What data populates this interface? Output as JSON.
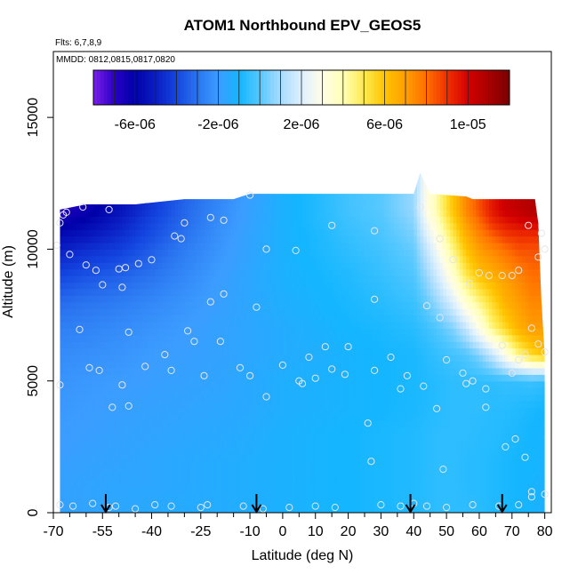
{
  "chart_data": {
    "type": "heatmap",
    "title": "ATOM1 Northbound EPV_GEOS5",
    "notes": {
      "flights": "Flts: 6,7,8,9",
      "dates": "MMDD: 0812,0815,0817,0820"
    },
    "xlabel": "Latitude (deg N)",
    "ylabel": "Altitude (m)",
    "xlim": [
      -70,
      82
    ],
    "ylim": [
      0,
      17500
    ],
    "x_ticks": [
      -70,
      -55,
      -40,
      -25,
      -10,
      0,
      10,
      20,
      30,
      40,
      50,
      60,
      70,
      80
    ],
    "x_minor_ticks": [
      -65,
      -60,
      -50,
      -45,
      -35,
      -30,
      -20,
      -15,
      -5,
      5,
      15,
      25,
      35,
      45,
      55,
      65,
      75
    ],
    "x_tick_labels": [
      "-70",
      "-55",
      "-40",
      "-25",
      "-10",
      "0",
      "10",
      "20",
      "30",
      "40",
      "50",
      "60",
      "70",
      "80"
    ],
    "y_ticks": [
      0,
      5000,
      10000,
      15000
    ],
    "y_tick_labels": [
      "0",
      "5000",
      "10000",
      "15000"
    ],
    "colorbar": {
      "min": -8e-06,
      "max": 1.2e-05,
      "tick_values": [
        -6e-06,
        -2e-06,
        2e-06,
        6e-06,
        1e-05
      ],
      "tick_labels": [
        "-6e-06",
        "-2e-06",
        "2e-06",
        "6e-06",
        "1e-05"
      ],
      "colors": [
        "#7a1fe8",
        "#2a00c8",
        "#0000a8",
        "#0a1ec4",
        "#1446e0",
        "#2a74f0",
        "#3c9cff",
        "#14b6ff",
        "#56c8ff",
        "#a8dcff",
        "#ddf0ff",
        "#fffde6",
        "#ffffb8",
        "#ffea50",
        "#ffc400",
        "#ff9e00",
        "#ff7000",
        "#f03000",
        "#d40000",
        "#aa0000",
        "#780000"
      ]
    },
    "field_top_m": [
      [
        -68,
        11500
      ],
      [
        -60,
        11700
      ],
      [
        -45,
        11700
      ],
      [
        -30,
        11900
      ],
      [
        -15,
        11900
      ],
      [
        -10,
        12100
      ],
      [
        40,
        12100
      ],
      [
        42,
        12900
      ],
      [
        45,
        12100
      ],
      [
        56,
        12000
      ],
      [
        58,
        11900
      ],
      [
        77,
        11900
      ],
      [
        78,
        11000
      ],
      [
        79,
        8000
      ],
      [
        80,
        6000
      ]
    ],
    "field": {
      "x": [
        -68,
        -60,
        -50,
        -40,
        -30,
        -20,
        -10,
        0,
        10,
        20,
        30,
        40,
        44,
        48,
        52,
        56,
        60,
        64,
        68,
        72,
        76,
        80
      ],
      "y": [
        0,
        1000,
        2000,
        3000,
        4000,
        5000,
        6000,
        7000,
        8000,
        9000,
        10000,
        10500,
        11000,
        11500,
        12000
      ],
      "values": [
        [
          -1.8e-06,
          -1.7e-06,
          -1.6e-06,
          -1.5e-06,
          -1.4e-06,
          -1.4e-06,
          -1.3e-06,
          -1.2e-06,
          -1.1e-06,
          -1e-06,
          -9e-07,
          -8e-07,
          -7e-07,
          -6e-07,
          -6e-07,
          -6e-07,
          -7e-07,
          -8e-07,
          -9e-07,
          -1e-06,
          -1.1e-06,
          -1.2e-06
        ],
        [
          -1.8e-06,
          -1.7e-06,
          -1.6e-06,
          -1.6e-06,
          -1.5e-06,
          -1.4e-06,
          -1.3e-06,
          -1.2e-06,
          -1.1e-06,
          -1e-06,
          -9e-07,
          -8e-07,
          -7e-07,
          -6e-07,
          -6e-07,
          -7e-07,
          -7e-07,
          -8e-07,
          -9e-07,
          -1e-06,
          -1.1e-06,
          -1.2e-06
        ],
        [
          -1.9e-06,
          -1.8e-06,
          -1.7e-06,
          -1.6e-06,
          -1.5e-06,
          -1.4e-06,
          -1.3e-06,
          -1.2e-06,
          -1.1e-06,
          -1e-06,
          -9e-07,
          -8e-07,
          -7e-07,
          -6e-07,
          -6e-07,
          -7e-07,
          -7e-07,
          -8e-07,
          -9e-07,
          -1e-06,
          -1e-06,
          -1.1e-06
        ],
        [
          -2e-06,
          -1.9e-06,
          -1.8e-06,
          -1.7e-06,
          -1.6e-06,
          -1.5e-06,
          -1.4e-06,
          -1.2e-06,
          -1.1e-06,
          -1e-06,
          -9e-07,
          -8e-07,
          -7e-07,
          -6e-07,
          -6e-07,
          -6e-07,
          -7e-07,
          -7e-07,
          -8e-07,
          -9e-07,
          -1e-06,
          -1.1e-06
        ],
        [
          -2.1e-06,
          -2e-06,
          -1.9e-06,
          -1.8e-06,
          -1.7e-06,
          -1.6e-06,
          -1.5e-06,
          -1.3e-06,
          -1.2e-06,
          -1.1e-06,
          -1e-06,
          -9e-07,
          -8e-07,
          -7e-07,
          -6e-07,
          -6e-07,
          -6e-07,
          -7e-07,
          -7e-07,
          -8e-07,
          -9e-07,
          -1e-06
        ],
        [
          -2.2e-06,
          -2.1e-06,
          -2e-06,
          -1.9e-06,
          -1.8e-06,
          -1.7e-06,
          -1.5e-06,
          -1.3e-06,
          -1.2e-06,
          -1.1e-06,
          -1e-06,
          -9e-07,
          -8e-07,
          -7e-07,
          -6e-07,
          -6e-07,
          -6e-07,
          -6e-07,
          -5e-07,
          -5e-07,
          -4e-07,
          -6e-07
        ],
        [
          -2.4e-06,
          -2.3e-06,
          -2.2e-06,
          -2e-06,
          -1.9e-06,
          -1.8e-06,
          -1.6e-06,
          -1.4e-06,
          -1.3e-06,
          -1.1e-06,
          -1e-06,
          -9e-07,
          -7e-07,
          -5e-07,
          -3e-07,
          -1e-07,
          5e-07,
          1.5e-06,
          3e-06,
          4.5e-06,
          5.5e-06,
          6e-06
        ],
        [
          -2.7e-06,
          -2.6e-06,
          -2.4e-06,
          -2.2e-06,
          -2e-06,
          -1.8e-06,
          -1.6e-06,
          -1.4e-06,
          -1.2e-06,
          -1e-06,
          -9e-07,
          -7e-07,
          -4e-07,
          0.0,
          5e-07,
          1.5e-06,
          3e-06,
          4.5e-06,
          5.5e-06,
          6.5e-06,
          7e-06,
          7e-06
        ],
        [
          -3.2e-06,
          -3e-06,
          -2.8e-06,
          -2.5e-06,
          -2.2e-06,
          -1.9e-06,
          -1.6e-06,
          -1.3e-06,
          -1.1e-06,
          -9e-07,
          -7e-07,
          -4e-07,
          2e-07,
          1e-06,
          2e-06,
          3.5e-06,
          4.5e-06,
          5.5e-06,
          6.5e-06,
          7e-06,
          7.5e-06,
          7.5e-06
        ],
        [
          -4e-06,
          -3.7e-06,
          -3.4e-06,
          -3e-06,
          -2.5e-06,
          -2e-06,
          -1.6e-06,
          -1.2e-06,
          -1e-06,
          -8e-07,
          -5e-07,
          -1e-07,
          8e-07,
          2e-06,
          3.5e-06,
          5e-06,
          6e-06,
          6.5e-06,
          7e-06,
          7.5e-06,
          8e-06,
          8e-06
        ],
        [
          -5e-06,
          -4.6e-06,
          -4.2e-06,
          -3.5e-06,
          -2.8e-06,
          -2.2e-06,
          -1.7e-06,
          -1.2e-06,
          -9e-07,
          -6e-07,
          -3e-07,
          2e-07,
          1.5e-06,
          3e-06,
          4.5e-06,
          6e-06,
          7e-06,
          7.5e-06,
          8e-06,
          8.5e-06,
          8.5e-06,
          8.5e-06
        ],
        [
          -5.6e-06,
          -5.2e-06,
          -4.6e-06,
          -3.8e-06,
          -3e-06,
          -2.3e-06,
          -1.7e-06,
          -1.2e-06,
          -9e-07,
          -5e-07,
          -2e-07,
          4e-07,
          2e-06,
          3.5e-06,
          5e-06,
          6.5e-06,
          7.5e-06,
          8.2e-06,
          8.8e-06,
          9e-06,
          9e-06,
          9e-06
        ],
        [
          -6.2e-06,
          -5.8e-06,
          -5e-06,
          -4e-06,
          -3.2e-06,
          -2.4e-06,
          -1.8e-06,
          -1.2e-06,
          -8e-07,
          -4e-07,
          -1e-07,
          6e-07,
          2.5e-06,
          4e-06,
          5.5e-06,
          7e-06,
          8e-06,
          9e-06,
          9.5e-06,
          9.8e-06,
          1e-05,
          1e-05
        ],
        [
          -6.8e-06,
          -6.3e-06,
          -5.4e-06,
          -4.3e-06,
          -3.3e-06,
          -2.5e-06,
          -1.8e-06,
          -1.2e-06,
          -8e-07,
          -3e-07,
          0.0,
          8e-07,
          3e-06,
          4.5e-06,
          6e-06,
          7.5e-06,
          8.5e-06,
          9.5e-06,
          1.02e-05,
          1.05e-05,
          1.08e-05,
          1.08e-05
        ],
        [
          -7e-06,
          -6.6e-06,
          -5.6e-06,
          -4.4e-06,
          -3.4e-06,
          -2.6e-06,
          -1.9e-06,
          -1.2e-06,
          -8e-07,
          -3e-07,
          0.0,
          8e-07,
          3e-06,
          4.5e-06,
          6e-06,
          7.5e-06,
          8.5e-06,
          9.5e-06,
          1.02e-05,
          1.05e-05,
          1.08e-05,
          1.08e-05
        ]
      ]
    },
    "samples": [
      [
        -69,
        10150
      ],
      [
        -68,
        11000
      ],
      [
        -67,
        11300
      ],
      [
        -66,
        11400
      ],
      [
        -61,
        11600
      ],
      [
        -53,
        11500
      ],
      [
        -30,
        11000
      ],
      [
        -22,
        11200
      ],
      [
        -18,
        11100
      ],
      [
        -10,
        12050
      ],
      [
        -65,
        9800
      ],
      [
        -60,
        9400
      ],
      [
        -57,
        9200
      ],
      [
        -50,
        9250
      ],
      [
        -48,
        9300
      ],
      [
        -44,
        9450
      ],
      [
        -40,
        9600
      ],
      [
        -33,
        10500
      ],
      [
        -31,
        10400
      ],
      [
        -5,
        10000
      ],
      [
        4,
        9950
      ],
      [
        15,
        10900
      ],
      [
        28,
        10700
      ],
      [
        42,
        11600
      ],
      [
        48,
        10400
      ],
      [
        -55,
        8650
      ],
      [
        -49,
        8550
      ],
      [
        -22,
        8000
      ],
      [
        -18,
        8300
      ],
      [
        -8,
        7800
      ],
      [
        28,
        8100
      ],
      [
        52,
        9600
      ],
      [
        57,
        8700
      ],
      [
        60,
        9100
      ],
      [
        63,
        9000
      ],
      [
        67,
        9000
      ],
      [
        70,
        9000
      ],
      [
        72,
        9200
      ],
      [
        75,
        10900
      ],
      [
        79,
        10600
      ],
      [
        80,
        10000
      ],
      [
        78,
        9700
      ],
      [
        -62,
        6950
      ],
      [
        -47,
        6850
      ],
      [
        -29,
        6900
      ],
      [
        -27,
        6500
      ],
      [
        -19,
        6500
      ],
      [
        -13,
        5500
      ],
      [
        -10,
        5200
      ],
      [
        0,
        5600
      ],
      [
        5,
        5000
      ],
      [
        8,
        5900
      ],
      [
        13,
        6300
      ],
      [
        20,
        6300
      ],
      [
        28,
        5400
      ],
      [
        33,
        5900
      ],
      [
        36,
        4700
      ],
      [
        38,
        5200
      ],
      [
        43,
        4800
      ],
      [
        47,
        3950
      ],
      [
        50,
        5800
      ],
      [
        55,
        5300
      ],
      [
        58,
        5000
      ],
      [
        62,
        4700
      ],
      [
        67,
        6350
      ],
      [
        70,
        5300
      ],
      [
        72,
        5800
      ],
      [
        74,
        6000
      ],
      [
        76,
        7000
      ],
      [
        78,
        6400
      ],
      [
        80,
        6100
      ],
      [
        -68,
        4850
      ],
      [
        -59,
        5500
      ],
      [
        -56,
        5400
      ],
      [
        -49,
        4850
      ],
      [
        -42,
        5550
      ],
      [
        -34,
        5400
      ],
      [
        -36,
        6000
      ],
      [
        -24,
        5200
      ],
      [
        15,
        5450
      ],
      [
        19,
        5250
      ],
      [
        44,
        7850
      ],
      [
        48,
        7400
      ],
      [
        -52,
        4000
      ],
      [
        -47,
        4050
      ],
      [
        -5,
        4400
      ],
      [
        6,
        4900
      ],
      [
        10,
        5100
      ],
      [
        26,
        3400
      ],
      [
        49,
        1650
      ],
      [
        56,
        4900
      ],
      [
        62,
        4000
      ],
      [
        68,
        2500
      ],
      [
        71,
        2800
      ],
      [
        74,
        2100
      ],
      [
        76,
        600
      ],
      [
        -68,
        300
      ],
      [
        -64,
        250
      ],
      [
        -58,
        350
      ],
      [
        -53,
        200
      ],
      [
        -51,
        250
      ],
      [
        -45,
        150
      ],
      [
        -39,
        300
      ],
      [
        -34,
        250
      ],
      [
        -25,
        200
      ],
      [
        -23,
        300
      ],
      [
        -12,
        250
      ],
      [
        -6,
        150
      ],
      [
        2,
        200
      ],
      [
        10,
        250
      ],
      [
        16,
        200
      ],
      [
        27,
        1950
      ],
      [
        30,
        300
      ],
      [
        36,
        250
      ],
      [
        40,
        350
      ],
      [
        44,
        250
      ],
      [
        50,
        200
      ],
      [
        58,
        300
      ],
      [
        66,
        250
      ],
      [
        72,
        300
      ],
      [
        76,
        800
      ],
      [
        80,
        700
      ]
    ],
    "markers_x": [
      -54,
      -8,
      39,
      67
    ]
  }
}
